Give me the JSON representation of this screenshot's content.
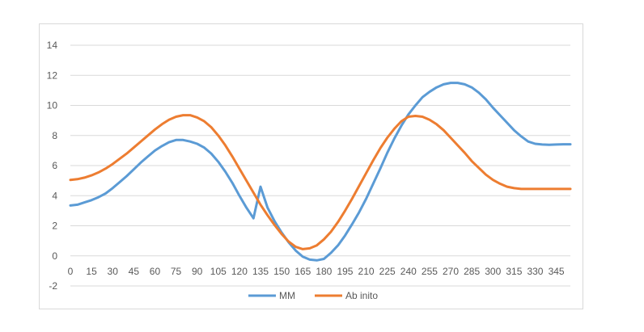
{
  "chart_data": {
    "type": "line",
    "title": "",
    "xlabel": "",
    "ylabel": "",
    "ylim": [
      -2,
      14
    ],
    "yticks": [
      -2,
      0,
      2,
      4,
      6,
      8,
      10,
      12,
      14
    ],
    "grid": true,
    "legend_position": "bottom",
    "categories": [
      0,
      5,
      10,
      15,
      20,
      25,
      30,
      35,
      40,
      45,
      50,
      55,
      60,
      65,
      70,
      75,
      80,
      85,
      90,
      95,
      100,
      105,
      110,
      115,
      120,
      125,
      130,
      135,
      140,
      145,
      150,
      155,
      160,
      165,
      170,
      175,
      180,
      185,
      190,
      195,
      200,
      205,
      210,
      215,
      220,
      225,
      230,
      235,
      240,
      245,
      250,
      255,
      260,
      265,
      270,
      275,
      280,
      285,
      290,
      295,
      300,
      305,
      310,
      315,
      320,
      325,
      330,
      335,
      340,
      345,
      350,
      355
    ],
    "x_tick_labels": [
      "0",
      "15",
      "30",
      "45",
      "60",
      "75",
      "90",
      "105",
      "120",
      "135",
      "150",
      "165",
      "180",
      "195",
      "210",
      "225",
      "240",
      "255",
      "270",
      "285",
      "300",
      "315",
      "330",
      "345"
    ],
    "series": [
      {
        "name": "MM",
        "color": "#5B9BD5",
        "values": [
          3.35,
          3.4,
          3.55,
          3.7,
          3.9,
          4.15,
          4.5,
          4.9,
          5.3,
          5.75,
          6.2,
          6.6,
          7.0,
          7.3,
          7.55,
          7.7,
          7.7,
          7.6,
          7.45,
          7.2,
          6.8,
          6.25,
          5.6,
          4.85,
          4.0,
          3.2,
          2.5,
          4.6,
          3.2,
          2.3,
          1.55,
          0.9,
          0.35,
          -0.05,
          -0.25,
          -0.3,
          -0.2,
          0.2,
          0.7,
          1.35,
          2.1,
          2.9,
          3.8,
          4.8,
          5.8,
          6.85,
          7.8,
          8.65,
          9.4,
          10.0,
          10.55,
          10.9,
          11.2,
          11.4,
          11.5,
          11.5,
          11.4,
          11.2,
          10.85,
          10.4,
          9.85,
          9.35,
          8.85,
          8.35,
          7.95,
          7.6,
          7.45,
          7.4,
          7.38,
          7.4,
          7.42,
          7.42
        ]
      },
      {
        "name": "Ab inito",
        "color": "#ED7D31",
        "values": [
          5.05,
          5.1,
          5.2,
          5.35,
          5.55,
          5.8,
          6.1,
          6.45,
          6.8,
          7.2,
          7.6,
          8.0,
          8.4,
          8.75,
          9.05,
          9.25,
          9.35,
          9.35,
          9.2,
          8.95,
          8.55,
          8.0,
          7.35,
          6.6,
          5.8,
          5.0,
          4.2,
          3.4,
          2.7,
          2.05,
          1.45,
          0.95,
          0.6,
          0.45,
          0.5,
          0.7,
          1.1,
          1.6,
          2.25,
          3.0,
          3.8,
          4.65,
          5.5,
          6.35,
          7.15,
          7.85,
          8.45,
          8.95,
          9.25,
          9.3,
          9.25,
          9.05,
          8.75,
          8.35,
          7.85,
          7.35,
          6.85,
          6.3,
          5.85,
          5.4,
          5.05,
          4.8,
          4.6,
          4.5,
          4.45,
          4.45,
          4.45,
          4.45,
          4.45,
          4.45,
          4.45,
          4.45
        ]
      }
    ]
  }
}
